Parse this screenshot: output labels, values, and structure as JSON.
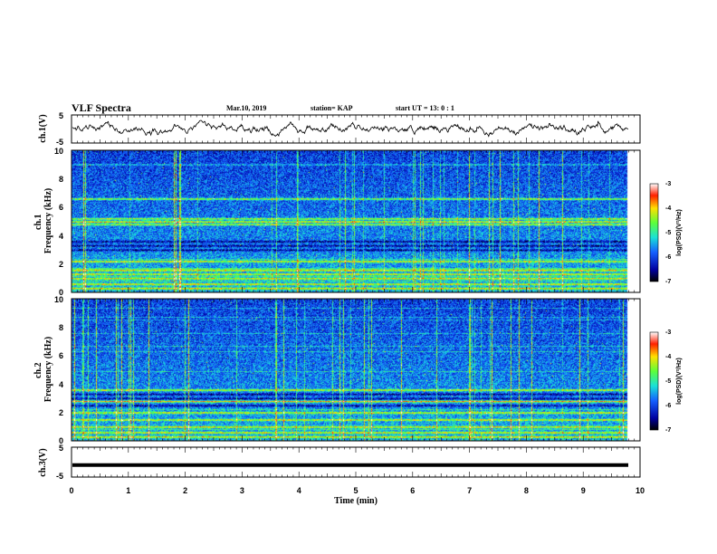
{
  "header": {
    "title": "VLF Spectra",
    "date": "Mar.10, 2019",
    "station": "station= KAP",
    "start": "start  UT =   13: 0  : 1"
  },
  "chart_data": [
    {
      "type": "line",
      "name": "ch1-waveform",
      "ylabel": "ch.1(V)",
      "ylim": [
        -5,
        5
      ],
      "yticks": [
        "5",
        "-5"
      ],
      "xlim": [
        0,
        10
      ],
      "trace_level": 0,
      "trace_noise": 1.6
    },
    {
      "type": "heatmap",
      "name": "ch1-spectrogram",
      "ylabel": "ch.1\nFrequency  (kHz)",
      "ylim": [
        0,
        10
      ],
      "yticks": [
        "0",
        "2",
        "4",
        "6",
        "8",
        "10"
      ],
      "xlim": [
        0,
        10
      ],
      "colorbar": {
        "label": "log(PSD)(V²/Hz)",
        "min": -7,
        "max": -3,
        "ticks": [
          "-3",
          "-4",
          "-5",
          "-6",
          "-7"
        ]
      },
      "strong_bands_khz": [
        0.3,
        0.6,
        1.0,
        1.3,
        1.6,
        2.2,
        4.8,
        5.0,
        5.2,
        6.6
      ],
      "dark_bands_khz": [
        3.0,
        3.3,
        3.6
      ]
    },
    {
      "type": "heatmap",
      "name": "ch2-spectrogram",
      "ylabel": "ch.2\nFrequency  (kHz)",
      "ylim": [
        0,
        10
      ],
      "yticks": [
        "0",
        "2",
        "4",
        "6",
        "8",
        "10"
      ],
      "xlim": [
        0,
        10
      ],
      "colorbar": {
        "label": "log(PSD)(V²/Hz)",
        "min": -7,
        "max": -3,
        "ticks": [
          "-3",
          "-4",
          "-5",
          "-6",
          "-7"
        ]
      },
      "strong_bands_khz": [
        0.3,
        0.6,
        1.0,
        1.5,
        2.0,
        2.8,
        3.6
      ],
      "dark_bands_khz": [
        2.5,
        3.0,
        3.3
      ]
    },
    {
      "type": "line",
      "name": "ch3-waveform",
      "ylabel": "ch.3(V)",
      "ylim": [
        -5,
        5
      ],
      "yticks": [
        "5",
        "-5"
      ],
      "xlim": [
        0,
        10
      ],
      "trace_level": -1,
      "trace_noise": 0
    }
  ],
  "xaxis": {
    "label": "Time  (min)",
    "ticks": [
      "0",
      "1",
      "2",
      "3",
      "4",
      "5",
      "6",
      "7",
      "8",
      "9",
      "10"
    ]
  }
}
